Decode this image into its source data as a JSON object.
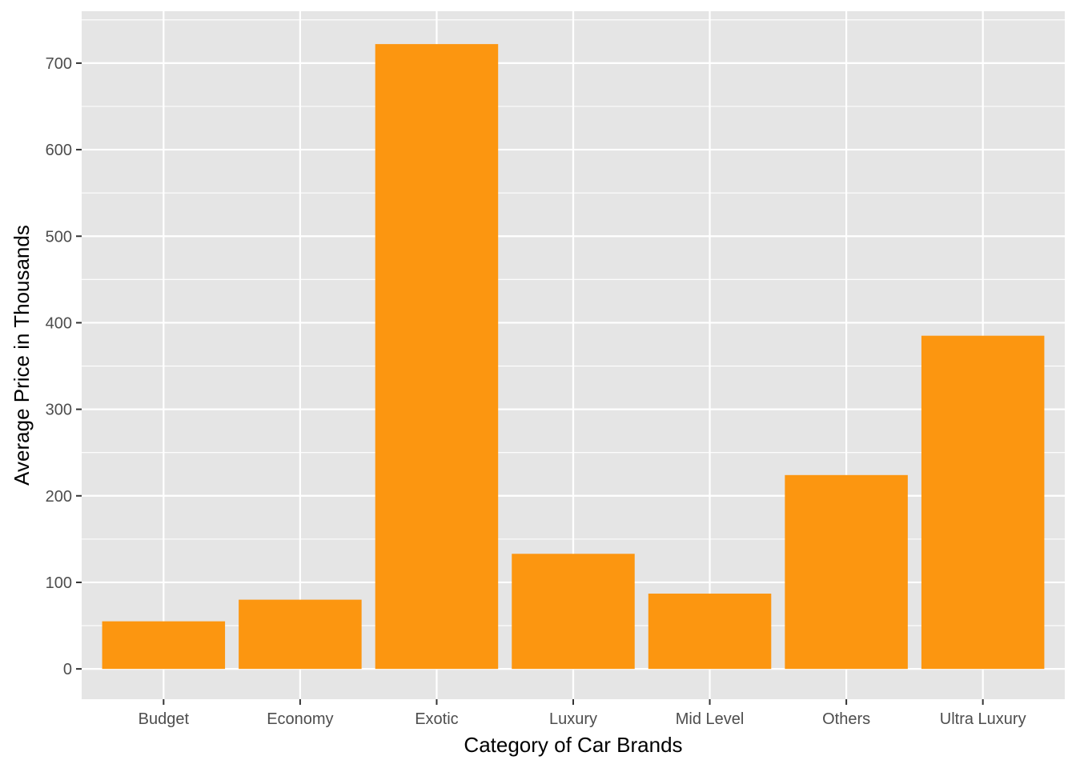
{
  "chart_data": {
    "type": "bar",
    "title": "",
    "xlabel": "Category of Car Brands",
    "ylabel": "Average Price in Thousands",
    "categories": [
      "Budget",
      "Economy",
      "Exotic",
      "Luxury",
      "Mid Level",
      "Others",
      "Ultra Luxury"
    ],
    "values": [
      55,
      80,
      722,
      133,
      87,
      224,
      385
    ],
    "ylim": [
      -35,
      760
    ],
    "yticks": [
      0,
      100,
      200,
      300,
      400,
      500,
      600,
      700
    ],
    "grid": true,
    "legend": "none",
    "colors": {
      "bar": "#fc9610",
      "panel_background": "#e5e5e5",
      "grid": "#ffffff",
      "tick": "#333333"
    }
  }
}
